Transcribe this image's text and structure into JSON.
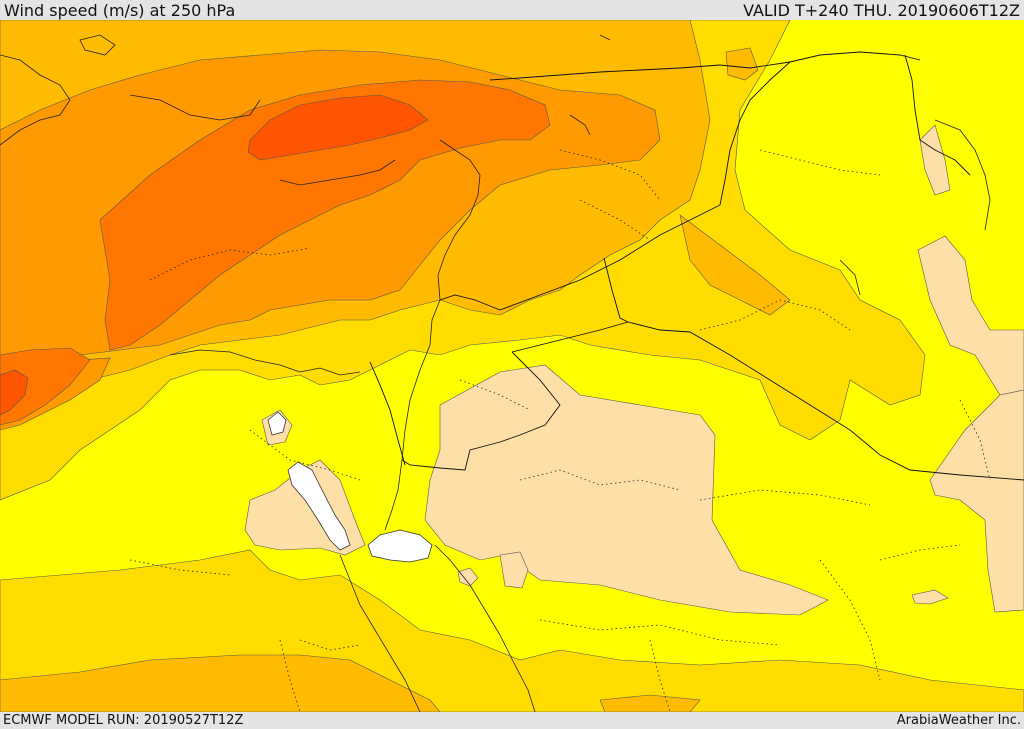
{
  "header": {
    "title": "Wind speed (m/s) at 250 hPa",
    "valid": "VALID T+240 THU. 20190606T12Z"
  },
  "footer": {
    "model_run": "ECMWF MODEL RUN: 20190527T12Z",
    "credit": "ArabiaWeather Inc."
  },
  "colors": {
    "band_lowest": "#ffdfa8",
    "band_low": "#ffff00",
    "band_mid_low": "#ffdd00",
    "band_mid": "#ffbb00",
    "band_mid_high": "#ff9a00",
    "band_high": "#ff7700",
    "band_highest": "#ff5500",
    "water": "#ffffff",
    "border": "#222222"
  }
}
